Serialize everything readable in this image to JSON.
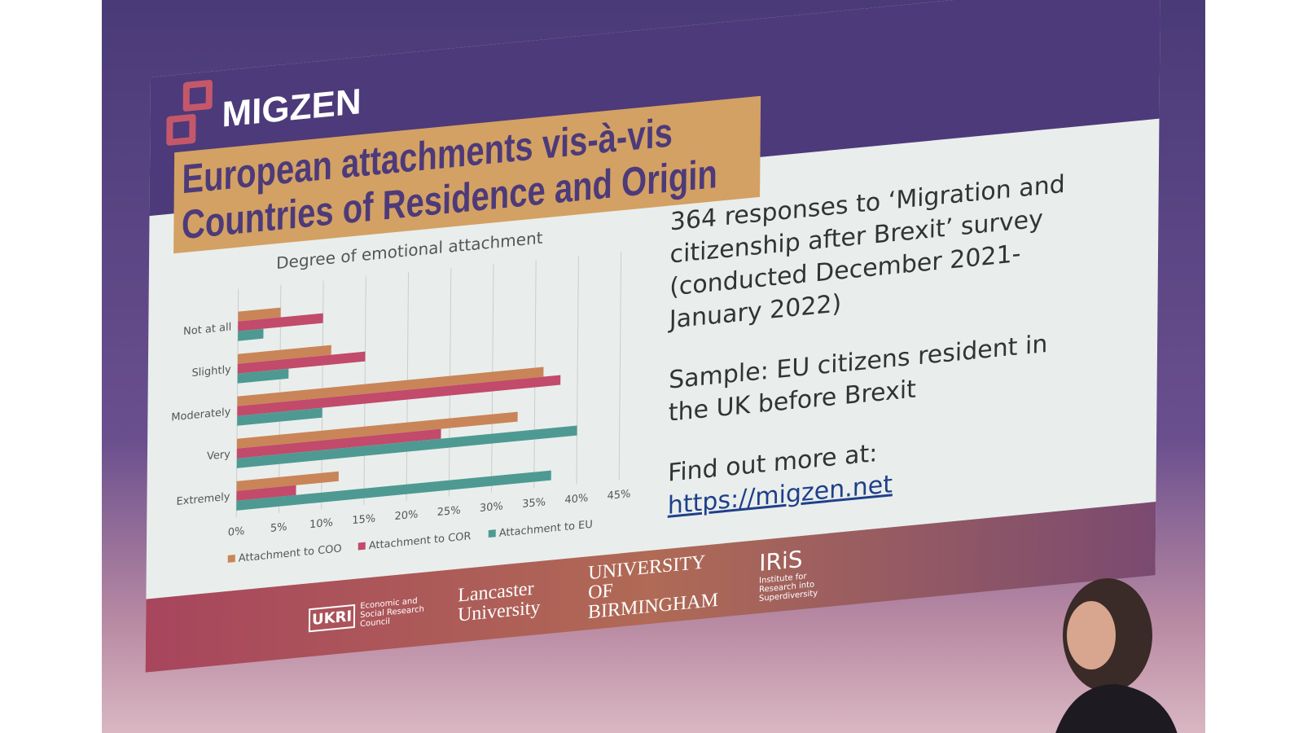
{
  "slide": {
    "brand": "MIGZEN",
    "title": "European attachments vis-à-vis Countries of Residence and Origin",
    "info": [
      "364 responses to ‘Migration and citizenship after Brexit’ survey (conducted December 2021-January 2022)",
      "Sample: EU citizens resident in the UK before Brexit",
      "Find out more at:"
    ],
    "link": "https://migzen.net",
    "footer": {
      "ukri": "UKRI",
      "esrc": "Economic and Social Research Council",
      "lancaster": "Lancaster University",
      "birmingham": "UNIVERSITY OF BIRMINGHAM",
      "iris": "IRiS",
      "iris_sub": "Institute for Research into Superdiversity"
    }
  },
  "colors": {
    "coo": "#c98558",
    "cor": "#c24a6b",
    "eu": "#4e9a92",
    "band": "#4d3a7a",
    "title_bg": "#d3a163"
  },
  "chart_data": {
    "type": "bar",
    "orientation": "horizontal",
    "title": "Degree of emotional attachment",
    "categories": [
      "Not at all",
      "Slightly",
      "Moderately",
      "Very",
      "Extremely"
    ],
    "series": [
      {
        "name": "Attachment to COO",
        "values": [
          5,
          11,
          36,
          33,
          12
        ]
      },
      {
        "name": "Attachment to COR",
        "values": [
          10,
          15,
          38,
          24,
          7
        ]
      },
      {
        "name": "Attachment to EU",
        "values": [
          3,
          6,
          10,
          40,
          37
        ]
      }
    ],
    "xticks": [
      "0%",
      "5%",
      "10%",
      "15%",
      "20%",
      "25%",
      "30%",
      "35%",
      "40%",
      "45%"
    ],
    "xlim": [
      0,
      45
    ],
    "grid": true,
    "legend": "bottom"
  }
}
